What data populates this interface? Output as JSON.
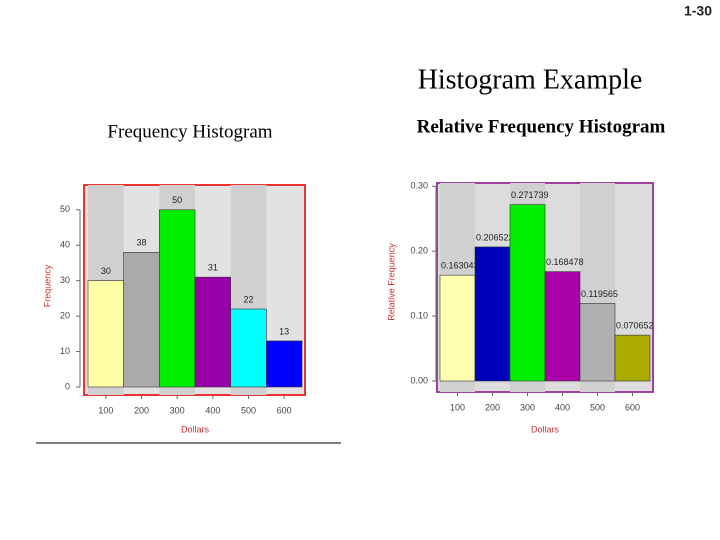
{
  "slide": {
    "page": "1-30",
    "title": "Histogram Example"
  },
  "chart_data": [
    {
      "type": "bar",
      "title": "Frequency Histogram",
      "categories": [
        "100",
        "200",
        "300",
        "400",
        "500",
        "600"
      ],
      "values": [
        30,
        38,
        50,
        31,
        22,
        13
      ],
      "colors": [
        "#ffffa8",
        "#aaaaaa",
        "#00ee00",
        "#9900aa",
        "#00ffff",
        "#0000ff"
      ],
      "xlabel": "Dollars",
      "ylabel": "Frequency",
      "ylim": [
        0,
        57
      ],
      "yticks": [
        0,
        10,
        20,
        30,
        40,
        50
      ]
    },
    {
      "type": "bar",
      "title": "Relative Frequency Histogram",
      "categories": [
        "100",
        "200",
        "300",
        "400",
        "500",
        "600"
      ],
      "values": [
        0.163043,
        0.206522,
        0.271739,
        0.168478,
        0.119565,
        0.070652
      ],
      "colors": [
        "#ffffb0",
        "#0000bb",
        "#00ee00",
        "#aa00aa",
        "#b0b0b0",
        "#aaaa00"
      ],
      "xlabel": "Dollars",
      "ylabel": "Relative Frequency",
      "ylim": [
        0,
        0.305
      ],
      "yticks": [
        {
          "value": 0,
          "label": "0.00"
        },
        {
          "value": 0.1,
          "label": "0.10"
        },
        {
          "value": 0.2,
          "label": "0.20"
        },
        {
          "value": 0.3,
          "label": "0.30"
        }
      ]
    }
  ]
}
